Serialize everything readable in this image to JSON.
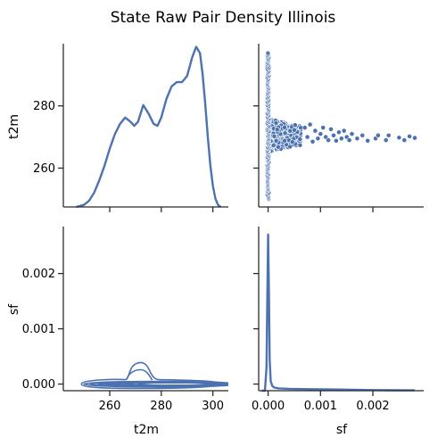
{
  "chart_data": {
    "type": "pairplot",
    "title": "State Raw Pair Density Illinois",
    "variables": [
      "t2m",
      "sf"
    ],
    "accent_color": "#4c72b0",
    "grid": false,
    "panels": [
      {
        "id": "t2m-kde",
        "row": 0,
        "col": 0,
        "type": "kde_line",
        "x": [
          247,
          250,
          252,
          254,
          256,
          258,
          260,
          262,
          264,
          266,
          268,
          269.5,
          271,
          273,
          275,
          277,
          278.5,
          280,
          282,
          284,
          286,
          288,
          290,
          292,
          293.5,
          295,
          296,
          297,
          298,
          299,
          300,
          301,
          302,
          303
        ],
        "y": [
          0.0,
          0.001,
          0.003,
          0.007,
          0.013,
          0.02,
          0.028,
          0.035,
          0.04,
          0.043,
          0.041,
          0.039,
          0.041,
          0.049,
          0.045,
          0.04,
          0.039,
          0.043,
          0.052,
          0.058,
          0.06,
          0.06,
          0.063,
          0.072,
          0.077,
          0.074,
          0.064,
          0.05,
          0.034,
          0.02,
          0.01,
          0.004,
          0.001,
          0.0
        ]
      },
      {
        "id": "sf-vs-t2m-scatter",
        "row": 0,
        "col": 1,
        "type": "scatter",
        "ylabel": "t2m",
        "yticks": [
          260,
          280
        ],
        "ylim": [
          247.5,
          300
        ],
        "dense_band": {
          "x_range": [
            0.0,
            0.00065
          ],
          "y_range": [
            265,
            276
          ]
        },
        "vertical_band": {
          "x": 0.0,
          "y_range": [
            250,
            297
          ]
        },
        "points": [
          [
            0.0007,
            273
          ],
          [
            0.00075,
            270
          ],
          [
            0.0008,
            274
          ],
          [
            0.00085,
            268.5
          ],
          [
            0.0009,
            272
          ],
          [
            0.00095,
            269.5
          ],
          [
            0.001,
            271
          ],
          [
            0.00105,
            273
          ],
          [
            0.0011,
            270
          ],
          [
            0.00115,
            269
          ],
          [
            0.0012,
            272.5
          ],
          [
            0.00125,
            270.5
          ],
          [
            0.0013,
            268.8
          ],
          [
            0.00135,
            271.5
          ],
          [
            0.0014,
            269.5
          ],
          [
            0.00145,
            272
          ],
          [
            0.0015,
            270
          ],
          [
            0.00155,
            269
          ],
          [
            0.0016,
            271
          ],
          [
            0.0017,
            269.5
          ],
          [
            0.0018,
            270.5
          ],
          [
            0.0019,
            268.8
          ],
          [
            0.00205,
            269.5
          ],
          [
            0.0021,
            270.5
          ],
          [
            0.00225,
            269
          ],
          [
            0.0023,
            270.5
          ],
          [
            0.0025,
            269.8
          ],
          [
            0.0026,
            269
          ],
          [
            0.0027,
            270.2
          ],
          [
            0.0028,
            269.7
          ]
        ]
      },
      {
        "id": "t2m-vs-sf-kde2d",
        "row": 1,
        "col": 0,
        "type": "kde2d_contour",
        "xlabel": "t2m",
        "ylabel": "sf",
        "xticks": [
          260,
          280,
          300
        ],
        "yticks": [
          0.0,
          0.001,
          0.002
        ],
        "yticklabels": [
          "0.000",
          "0.001",
          "0.002"
        ],
        "xlim": [
          242,
          306
        ],
        "ylim": [
          -0.00012,
          0.00285
        ]
      },
      {
        "id": "sf-kde",
        "row": 1,
        "col": 1,
        "type": "kde_line",
        "xlabel": "sf",
        "xticks": [
          0.0,
          0.001,
          0.002
        ],
        "xticklabels": [
          "0.000",
          "0.001",
          "0.002"
        ],
        "xlim": [
          -0.00018,
          0.00297
        ],
        "x": [
          -0.00012,
          -6e-05,
          -3e-05,
          -1.5e-05,
          0.0,
          1.5e-05,
          3e-05,
          5e-05,
          8e-05,
          0.00012,
          0.0002,
          0.0004,
          0.0008,
          0.0012,
          0.0016,
          0.002,
          0.0024,
          0.0028
        ],
        "y": [
          0.0,
          0.0,
          0.15,
          0.6,
          1.0,
          0.62,
          0.2,
          0.06,
          0.03,
          0.02,
          0.015,
          0.012,
          0.01,
          0.008,
          0.006,
          0.004,
          0.003,
          0.002
        ]
      }
    ]
  }
}
